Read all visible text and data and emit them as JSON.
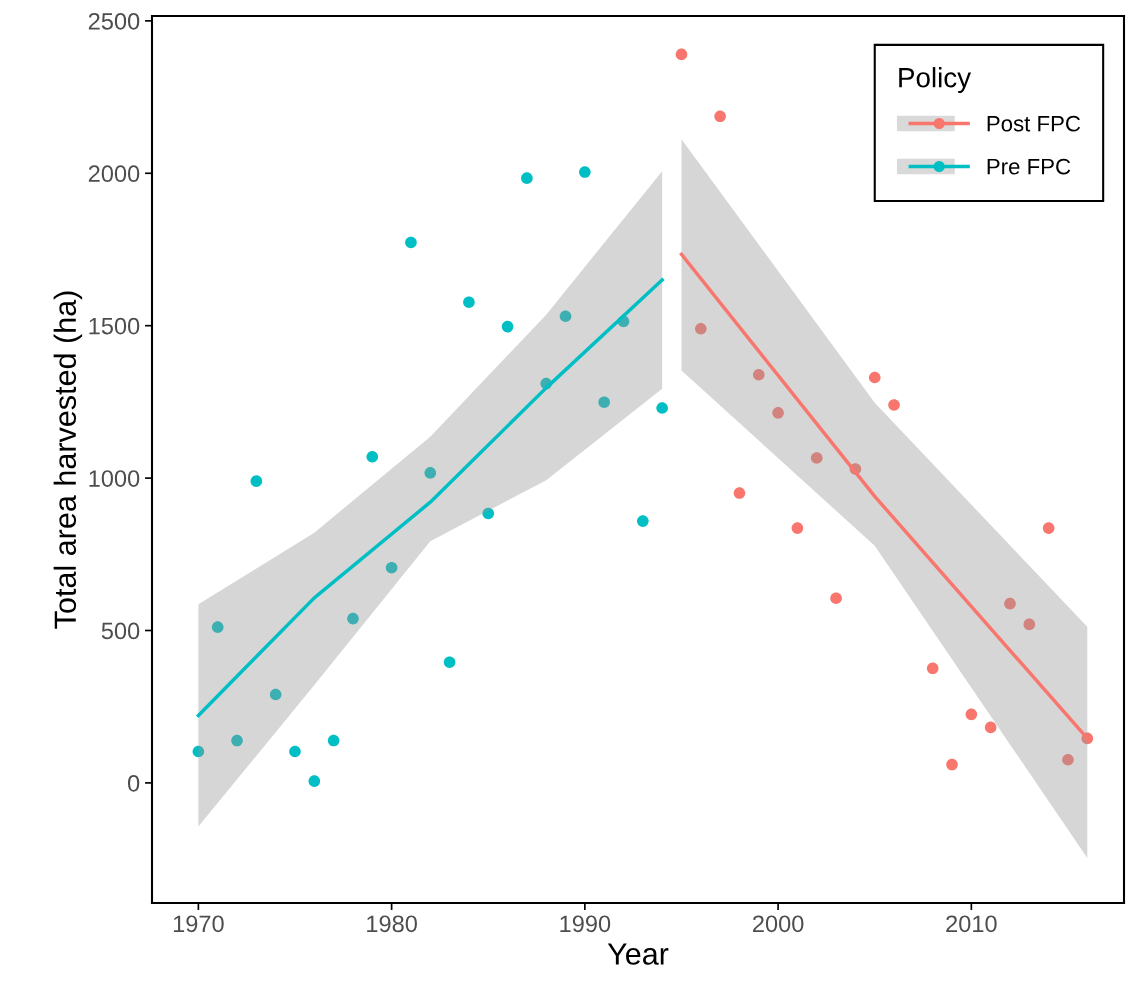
{
  "chart_data": {
    "type": "scatter",
    "xlabel": "Year",
    "ylabel": "Total area harvested (ha)",
    "legend_title": "Policy",
    "xlim": [
      1967.6,
      2017.9
    ],
    "ylim": [
      -394,
      2516
    ],
    "xticks": [
      1970,
      1980,
      1990,
      2000,
      2010
    ],
    "yticks": [
      0,
      500,
      1000,
      1500,
      2000,
      2500
    ],
    "grid": false,
    "legend": "top right",
    "marker": "circle",
    "series": [
      {
        "name": "Post FPC",
        "color": "#f8766d",
        "x": [
          1995,
          1996,
          1997,
          1998,
          1999,
          2000,
          2001,
          2002,
          2003,
          2004,
          2005,
          2006,
          2008,
          2009,
          2010,
          2011,
          2012,
          2013,
          2014,
          2015,
          2016
        ],
        "values": [
          2390,
          1490,
          2187,
          951,
          1339,
          1214,
          836,
          1066,
          606,
          1030,
          1330,
          1240,
          376,
          60,
          225,
          182,
          588,
          520,
          836,
          76,
          146
        ]
      },
      {
        "name": "Pre FPC",
        "color": "#00bfc4",
        "x": [
          1970,
          1971,
          1972,
          1973,
          1974,
          1975,
          1976,
          1977,
          1978,
          1979,
          1980,
          1981,
          1982,
          1983,
          1984,
          1985,
          1986,
          1987,
          1988,
          1989,
          1990,
          1991,
          1992,
          1993,
          1994
        ],
        "values": [
          103,
          511,
          139,
          990,
          290,
          103,
          6,
          139,
          539,
          1070,
          706,
          1773,
          1017,
          396,
          1577,
          884,
          1497,
          1984,
          1310,
          1531,
          2004,
          1249,
          1514,
          859,
          1230
        ]
      },
      {
        "type": "line",
        "marker": "none",
        "color": "#f8766d",
        "x": [
          1995,
          2005,
          2016
        ],
        "values": [
          1734,
          940,
          146
        ],
        "lower": [
          1353,
          778,
          -246
        ],
        "upper": [
          2112,
          1247,
          512
        ]
      },
      {
        "type": "line",
        "marker": "none",
        "color": "#00bfc4",
        "x": [
          1970,
          1976,
          1982,
          1988,
          1994
        ],
        "values": [
          221,
          607,
          921,
          1296,
          1650
        ],
        "lower": [
          -143,
          321,
          793,
          993,
          1293
        ],
        "upper": [
          586,
          821,
          1136,
          1536,
          2007
        ]
      }
    ]
  }
}
